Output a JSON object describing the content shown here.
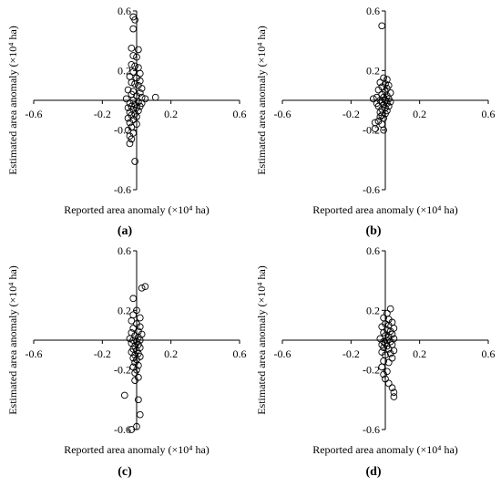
{
  "chart_data": [
    {
      "type": "scatter",
      "label": "(a)",
      "xlabel": "Reported area anomaly (×10⁴ ha)",
      "ylabel": "Estimated area anomaly (×10⁴ ha)",
      "xlim": [
        -0.6,
        0.6
      ],
      "ylim": [
        -0.6,
        0.6
      ],
      "xticks": [
        "-0.6",
        "-0.2",
        "0.2",
        "0.6"
      ],
      "yticks": [
        "0.6",
        "0.2",
        "-0.2",
        "-0.6"
      ],
      "grid": false,
      "points": [
        [
          -0.02,
          0.56
        ],
        [
          -0.01,
          0.54
        ],
        [
          -0.02,
          0.48
        ],
        [
          -0.03,
          0.35
        ],
        [
          0.01,
          0.34
        ],
        [
          -0.02,
          0.3
        ],
        [
          0.0,
          0.29
        ],
        [
          -0.03,
          0.24
        ],
        [
          -0.01,
          0.23
        ],
        [
          0.01,
          0.22
        ],
        [
          -0.02,
          0.19
        ],
        [
          0.02,
          0.18
        ],
        [
          -0.04,
          0.16
        ],
        [
          0.0,
          0.15
        ],
        [
          0.02,
          0.13
        ],
        [
          -0.03,
          0.12
        ],
        [
          -0.01,
          0.11
        ],
        [
          0.01,
          0.1
        ],
        [
          0.03,
          0.08
        ],
        [
          -0.05,
          0.07
        ],
        [
          -0.02,
          0.06
        ],
        [
          0.02,
          0.05
        ],
        [
          -0.03,
          0.04
        ],
        [
          0.0,
          0.03
        ],
        [
          0.03,
          0.02
        ],
        [
          0.11,
          0.02
        ],
        [
          0.05,
          0.01
        ],
        [
          -0.06,
          0.01
        ],
        [
          -0.02,
          0.0
        ],
        [
          0.01,
          -0.01
        ],
        [
          -0.04,
          -0.02
        ],
        [
          0.03,
          -0.02
        ],
        [
          -0.01,
          -0.03
        ],
        [
          -0.03,
          -0.04
        ],
        [
          0.02,
          -0.04
        ],
        [
          -0.05,
          -0.05
        ],
        [
          0.0,
          -0.05
        ],
        [
          -0.02,
          -0.06
        ],
        [
          0.01,
          -0.07
        ],
        [
          -0.04,
          -0.08
        ],
        [
          -0.01,
          -0.09
        ],
        [
          -0.03,
          -0.1
        ],
        [
          0.0,
          -0.11
        ],
        [
          -0.05,
          -0.12
        ],
        [
          -0.02,
          -0.13
        ],
        [
          -0.04,
          -0.15
        ],
        [
          0.0,
          -0.16
        ],
        [
          -0.03,
          -0.18
        ],
        [
          -0.05,
          -0.2
        ],
        [
          -0.02,
          -0.22
        ],
        [
          -0.04,
          -0.24
        ],
        [
          -0.03,
          -0.26
        ],
        [
          -0.04,
          -0.29
        ],
        [
          -0.01,
          -0.41
        ]
      ]
    },
    {
      "type": "scatter",
      "label": "(b)",
      "xlabel": "Reported area anomaly (×10⁴ ha)",
      "ylabel": "Estimated area anomaly (×10⁴ ha)",
      "xlim": [
        -0.6,
        0.6
      ],
      "ylim": [
        -0.6,
        0.6
      ],
      "xticks": [
        "-0.6",
        "-0.2",
        "0.2",
        "0.6"
      ],
      "yticks": [
        "0.6",
        "0.2",
        "-0.2",
        "-0.6"
      ],
      "grid": false,
      "points": [
        [
          -0.02,
          0.5
        ],
        [
          -0.01,
          0.15
        ],
        [
          0.01,
          0.14
        ],
        [
          -0.03,
          0.12
        ],
        [
          0.0,
          0.11
        ],
        [
          0.02,
          0.1
        ],
        [
          -0.02,
          0.09
        ],
        [
          0.01,
          0.08
        ],
        [
          -0.04,
          0.07
        ],
        [
          0.0,
          0.06
        ],
        [
          0.03,
          0.05
        ],
        [
          -0.02,
          0.04
        ],
        [
          0.01,
          0.03
        ],
        [
          -0.05,
          0.02
        ],
        [
          -0.01,
          0.02
        ],
        [
          0.02,
          0.01
        ],
        [
          -0.07,
          0.01
        ],
        [
          -0.03,
          0.0
        ],
        [
          0.0,
          0.0
        ],
        [
          0.03,
          -0.01
        ],
        [
          -0.02,
          -0.01
        ],
        [
          -0.05,
          -0.02
        ],
        [
          0.01,
          -0.02
        ],
        [
          -0.01,
          -0.03
        ],
        [
          0.02,
          -0.04
        ],
        [
          -0.04,
          -0.04
        ],
        [
          0.0,
          -0.05
        ],
        [
          -0.02,
          -0.06
        ],
        [
          0.01,
          -0.07
        ],
        [
          -0.03,
          -0.08
        ],
        [
          0.0,
          -0.09
        ],
        [
          -0.02,
          -0.1
        ],
        [
          -0.03,
          -0.11
        ],
        [
          -0.01,
          -0.12
        ],
        [
          -0.04,
          -0.14
        ],
        [
          -0.06,
          -0.15
        ],
        [
          -0.02,
          -0.16
        ],
        [
          -0.06,
          -0.19
        ],
        [
          -0.01,
          -0.2
        ]
      ]
    },
    {
      "type": "scatter",
      "label": "(c)",
      "xlabel": "Reported area anomaly (×10⁴ ha)",
      "ylabel": "Estimated area anomaly (×10⁴ ha)",
      "xlim": [
        -0.6,
        0.6
      ],
      "ylim": [
        -0.6,
        0.6
      ],
      "xticks": [
        "-0.6",
        "-0.2",
        "0.2",
        "0.6"
      ],
      "yticks": [
        "0.6",
        "0.2",
        "-0.2",
        "-0.6"
      ],
      "grid": false,
      "points": [
        [
          0.05,
          0.36
        ],
        [
          0.03,
          0.35
        ],
        [
          -0.02,
          0.28
        ],
        [
          0.0,
          0.2
        ],
        [
          -0.02,
          0.17
        ],
        [
          0.02,
          0.15
        ],
        [
          -0.03,
          0.13
        ],
        [
          0.0,
          0.11
        ],
        [
          0.02,
          0.09
        ],
        [
          -0.02,
          0.08
        ],
        [
          0.01,
          0.06
        ],
        [
          -0.03,
          0.05
        ],
        [
          0.03,
          0.04
        ],
        [
          -0.01,
          0.03
        ],
        [
          0.01,
          0.02
        ],
        [
          -0.04,
          0.01
        ],
        [
          -0.02,
          0.0
        ],
        [
          0.02,
          0.0
        ],
        [
          0.0,
          -0.01
        ],
        [
          -0.03,
          -0.02
        ],
        [
          0.01,
          -0.03
        ],
        [
          -0.01,
          -0.04
        ],
        [
          0.02,
          -0.05
        ],
        [
          -0.02,
          -0.06
        ],
        [
          0.0,
          -0.07
        ],
        [
          -0.03,
          -0.08
        ],
        [
          0.01,
          -0.09
        ],
        [
          -0.01,
          -0.1
        ],
        [
          0.02,
          -0.11
        ],
        [
          -0.02,
          -0.12
        ],
        [
          0.0,
          -0.13
        ],
        [
          -0.01,
          -0.15
        ],
        [
          0.01,
          -0.17
        ],
        [
          -0.02,
          -0.18
        ],
        [
          0.0,
          -0.2
        ],
        [
          -0.01,
          -0.22
        ],
        [
          0.01,
          -0.25
        ],
        [
          -0.01,
          -0.27
        ],
        [
          -0.07,
          -0.37
        ],
        [
          0.01,
          -0.4
        ],
        [
          0.02,
          -0.5
        ],
        [
          0.0,
          -0.58
        ],
        [
          -0.03,
          -0.6
        ]
      ]
    },
    {
      "type": "scatter",
      "label": "(d)",
      "xlabel": "Reported area anomaly (×10⁴ ha)",
      "ylabel": "Estimated area anomaly (×10⁴ ha)",
      "xlim": [
        -0.6,
        0.6
      ],
      "ylim": [
        -0.6,
        0.6
      ],
      "xticks": [
        "-0.6",
        "-0.2",
        "0.2",
        "0.6"
      ],
      "yticks": [
        "0.6",
        "0.2",
        "-0.2",
        "-0.6"
      ],
      "grid": false,
      "points": [
        [
          0.03,
          0.21
        ],
        [
          0.01,
          0.18
        ],
        [
          -0.01,
          0.15
        ],
        [
          0.02,
          0.14
        ],
        [
          0.04,
          0.12
        ],
        [
          0.0,
          0.11
        ],
        [
          0.02,
          0.1
        ],
        [
          -0.02,
          0.09
        ],
        [
          0.05,
          0.08
        ],
        [
          0.01,
          0.07
        ],
        [
          0.03,
          0.06
        ],
        [
          -0.01,
          0.05
        ],
        [
          0.04,
          0.04
        ],
        [
          0.0,
          0.03
        ],
        [
          0.02,
          0.02
        ],
        [
          -0.03,
          0.01
        ],
        [
          0.05,
          0.01
        ],
        [
          0.01,
          0.0
        ],
        [
          -0.01,
          -0.01
        ],
        [
          0.03,
          -0.01
        ],
        [
          0.0,
          -0.02
        ],
        [
          -0.02,
          -0.03
        ],
        [
          0.04,
          -0.03
        ],
        [
          0.01,
          -0.04
        ],
        [
          -0.01,
          -0.05
        ],
        [
          0.02,
          -0.06
        ],
        [
          0.05,
          -0.07
        ],
        [
          -0.02,
          -0.08
        ],
        [
          0.03,
          -0.09
        ],
        [
          0.0,
          -0.1
        ],
        [
          0.04,
          -0.12
        ],
        [
          -0.01,
          -0.14
        ],
        [
          0.02,
          -0.15
        ],
        [
          -0.02,
          -0.18
        ],
        [
          0.01,
          -0.21
        ],
        [
          -0.01,
          -0.23
        ],
        [
          0.0,
          -0.26
        ],
        [
          0.02,
          -0.29
        ],
        [
          0.04,
          -0.32
        ],
        [
          0.05,
          -0.35
        ],
        [
          0.05,
          -0.38
        ]
      ]
    }
  ]
}
